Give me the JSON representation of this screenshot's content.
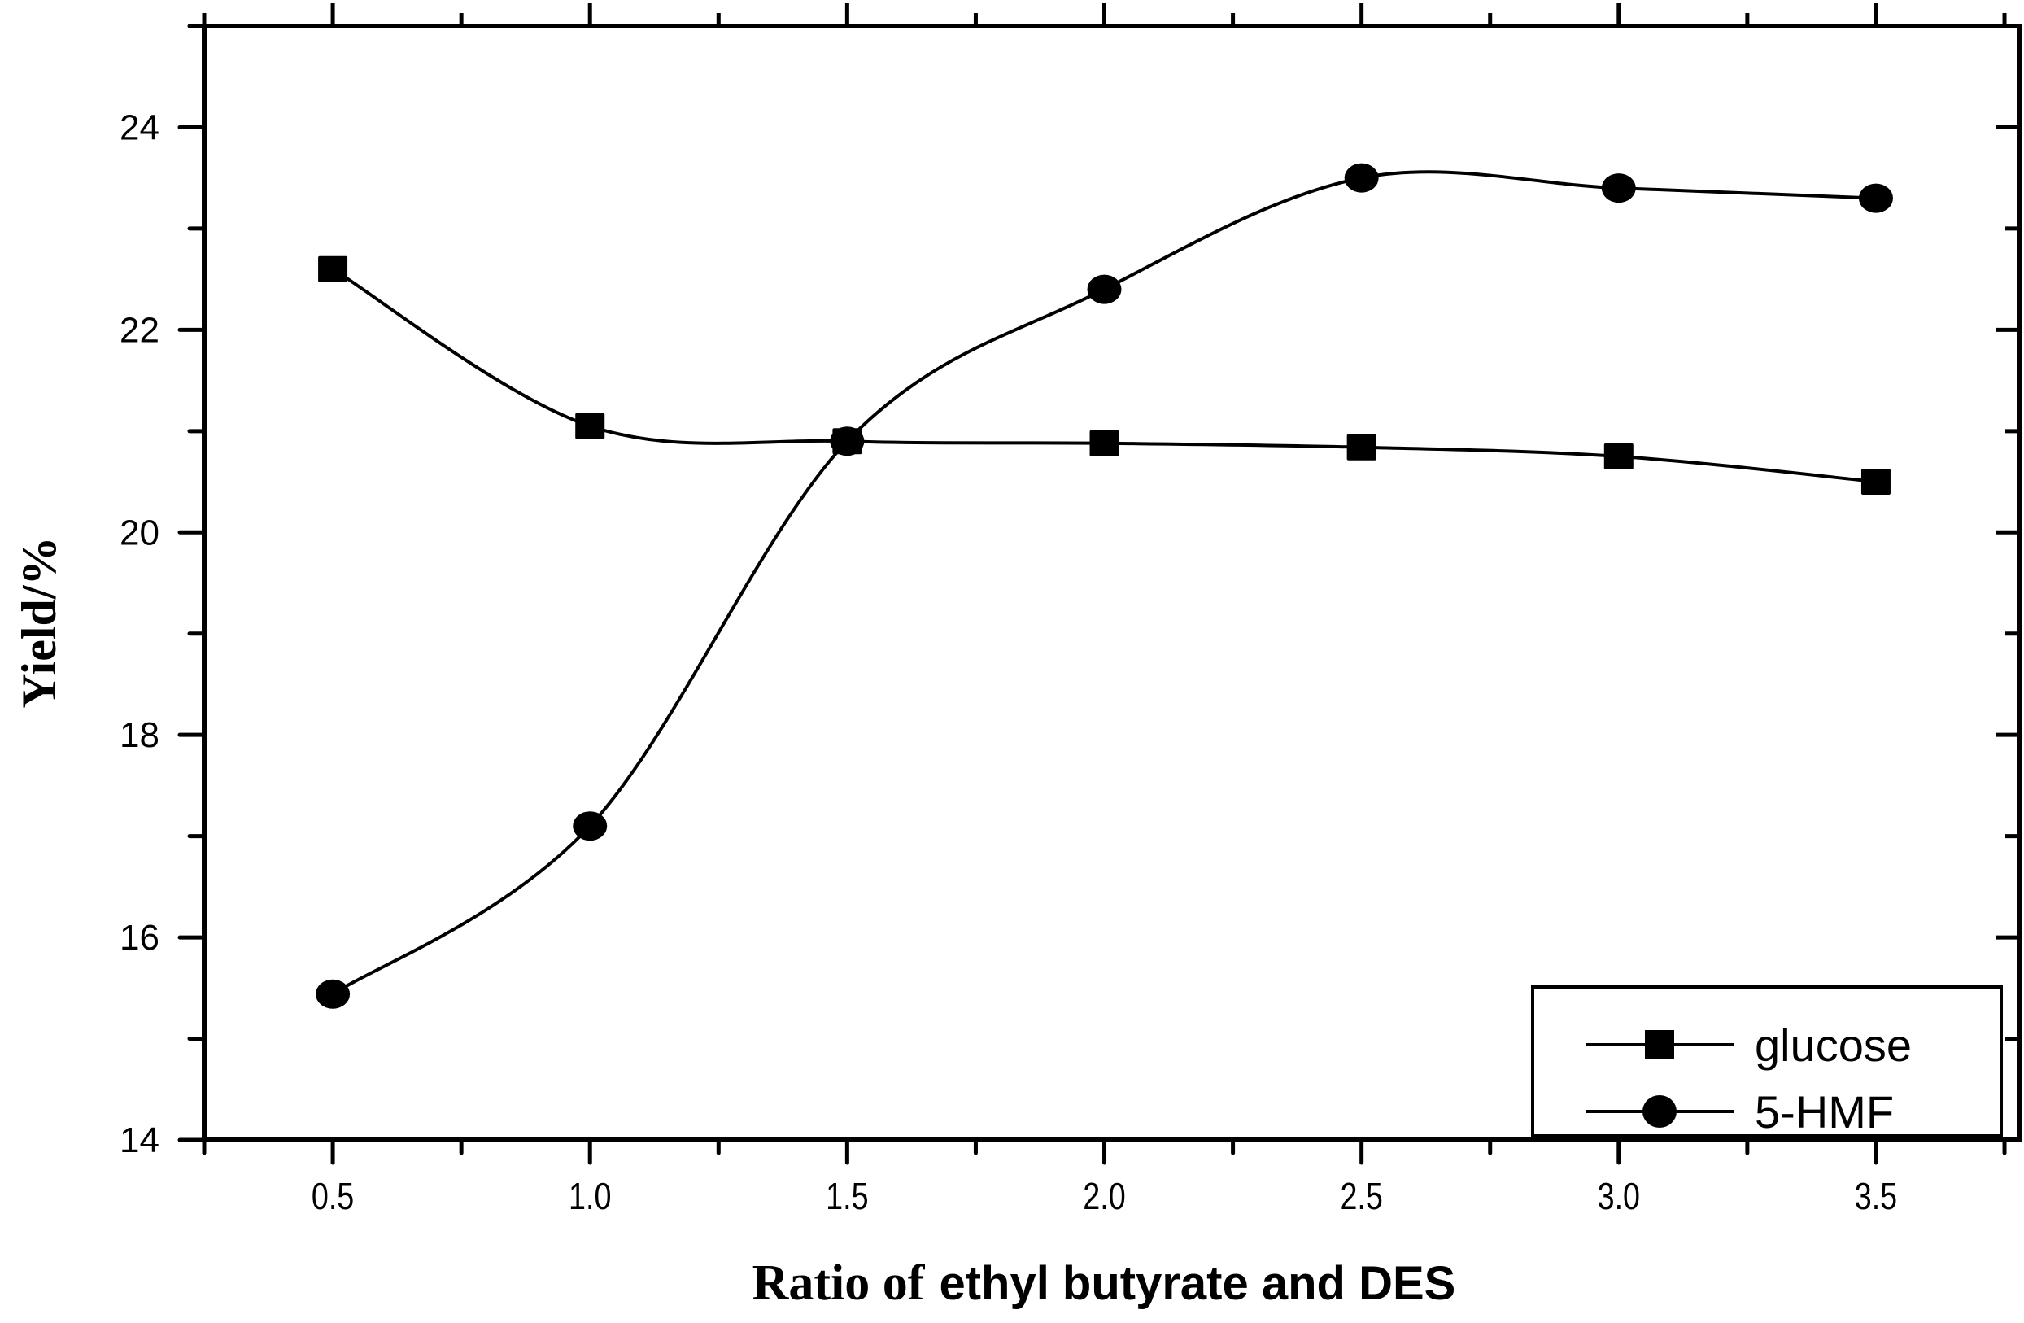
{
  "chart_data": {
    "type": "line",
    "title": "",
    "xlabel": "Ratio of ethyl butyrate and DES",
    "xlabel_parts": [
      "Ratio of",
      "ethyl butyrate and DES"
    ],
    "ylabel": "Yield/%",
    "x": [
      0.5,
      1.0,
      1.5,
      2.0,
      2.5,
      3.0,
      3.5
    ],
    "series": [
      {
        "name": "glucose",
        "marker": "square",
        "values": [
          22.6,
          21.05,
          20.9,
          20.88,
          20.84,
          20.75,
          20.5
        ]
      },
      {
        "name": "5-HMF",
        "marker": "circle",
        "values": [
          15.44,
          17.1,
          20.9,
          22.4,
          23.5,
          23.4,
          23.3
        ]
      }
    ],
    "xlim": [
      0.25,
      3.78
    ],
    "ylim": [
      14,
      25
    ],
    "xticks": [
      "0.5",
      "1.0",
      "1.5",
      "2.0",
      "2.5",
      "3.0",
      "3.5"
    ],
    "xtick_values": [
      0.5,
      1.0,
      1.5,
      2.0,
      2.5,
      3.0,
      3.5
    ],
    "xminor_step": 0.25,
    "yticks": [
      "14",
      "16",
      "18",
      "20",
      "22",
      "24"
    ],
    "ytick_values": [
      14,
      16,
      18,
      20,
      22,
      24
    ],
    "yminor_step": 1,
    "grid": false,
    "legend_position": "lower right",
    "line_style": "smooth spline",
    "colors": {
      "line": "#000000",
      "marker": "#000000",
      "background": "#ffffff"
    }
  }
}
